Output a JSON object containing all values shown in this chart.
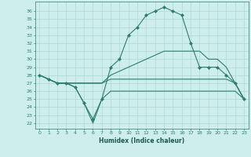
{
  "xlabel": "Humidex (Indice chaleur)",
  "background_color": "#cdeeed",
  "grid_color": "#b0d8d4",
  "line_color": "#2e7d6e",
  "x_ticks": [
    0,
    1,
    2,
    3,
    4,
    5,
    6,
    7,
    8,
    9,
    10,
    11,
    12,
    13,
    14,
    15,
    16,
    17,
    18,
    19,
    20,
    21,
    22,
    23
  ],
  "y_ticks": [
    22,
    23,
    24,
    25,
    26,
    27,
    28,
    29,
    30,
    31,
    32,
    33,
    34,
    35,
    36
  ],
  "ylim": [
    21.3,
    37.2
  ],
  "xlim": [
    -0.5,
    23.5
  ],
  "series": [
    {
      "x": [
        0,
        1,
        2,
        3,
        4,
        5,
        6,
        7,
        8,
        9,
        10,
        11,
        12,
        13,
        14,
        15,
        16,
        17,
        18,
        19,
        20,
        21,
        22,
        23
      ],
      "y": [
        28,
        27.5,
        27,
        27,
        26.5,
        24.5,
        22.5,
        25,
        29,
        30,
        33,
        34,
        35.5,
        36,
        36.5,
        36,
        35.5,
        32,
        29,
        29,
        29,
        28,
        27,
        25
      ],
      "marker": true
    },
    {
      "x": [
        0,
        1,
        2,
        3,
        4,
        5,
        6,
        7,
        8,
        9,
        10,
        11,
        12,
        13,
        14,
        15,
        16,
        17,
        18,
        19,
        20,
        21,
        22,
        23
      ],
      "y": [
        28,
        27.5,
        27,
        27,
        27,
        27,
        27,
        27,
        28,
        28.5,
        29,
        29.5,
        30,
        30.5,
        31,
        31,
        31,
        31,
        31,
        30,
        30,
        29,
        27,
        25
      ],
      "marker": false
    },
    {
      "x": [
        0,
        1,
        2,
        3,
        4,
        5,
        6,
        7,
        8,
        9,
        10,
        11,
        12,
        13,
        14,
        15,
        16,
        17,
        18,
        19,
        20,
        21,
        22,
        23
      ],
      "y": [
        28,
        27.5,
        27,
        27,
        27,
        27,
        27,
        27,
        27.5,
        27.5,
        27.5,
        27.5,
        27.5,
        27.5,
        27.5,
        27.5,
        27.5,
        27.5,
        27.5,
        27.5,
        27.5,
        27.5,
        27,
        25
      ],
      "marker": false
    },
    {
      "x": [
        0,
        1,
        2,
        3,
        4,
        5,
        6,
        7,
        8,
        9,
        10,
        11,
        12,
        13,
        14,
        15,
        16,
        17,
        18,
        19,
        20,
        21,
        22,
        23
      ],
      "y": [
        28,
        27.5,
        27,
        27,
        26.5,
        24.5,
        22,
        25,
        26,
        26,
        26,
        26,
        26,
        26,
        26,
        26,
        26,
        26,
        26,
        26,
        26,
        26,
        26,
        25
      ],
      "marker": false
    }
  ]
}
